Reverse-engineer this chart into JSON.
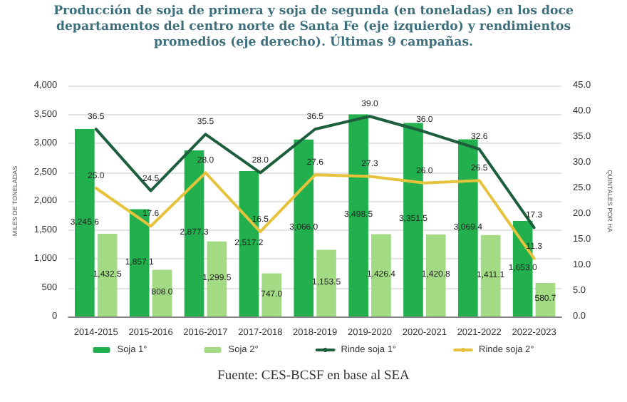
{
  "chart_data": {
    "type": "bar",
    "title": "Producción de soja de primera y soja de segunda (en toneladas) en los doce departamentos del centro norte de Santa Fe (eje izquierdo) y rendimientos promedios (eje derecho). Últimas 9 campañas.",
    "ylabel": "MILES DE TONELADAS",
    "y2label": "QUINTALES POR HA",
    "categories": [
      "2014-2015",
      "2015-2016",
      "2016-2017",
      "2017-2018",
      "2018-2019",
      "2019-2020",
      "2020-2021",
      "2021-2022",
      "2022-2023"
    ],
    "series": [
      {
        "name": "Soja 1°",
        "color": "#22b04f",
        "values": [
          3245.6,
          1857.1,
          2877.3,
          2517.2,
          3066.0,
          3498.5,
          3351.5,
          3069.4,
          1653.0
        ],
        "value_labels": [
          "3,245.6",
          "1,857.1",
          "2,877.3",
          "2,517.2",
          "3,066.0",
          "3,498.5",
          "3,351.5",
          "3,069.4",
          "1,653.0"
        ]
      },
      {
        "name": "Soja 2°",
        "color": "#a3db84",
        "values": [
          1432.5,
          808.0,
          1299.5,
          747.0,
          1153.5,
          1426.4,
          1420.8,
          1411.1,
          580.7
        ],
        "value_labels": [
          "1,432.5",
          "808.0",
          "1,299.5",
          "747.0",
          "1,153.5",
          "1,426.4",
          "1,420.8",
          "1,411.1",
          "580.7"
        ]
      },
      {
        "name": "Rinde soja 1°",
        "type": "line",
        "axis": "y2",
        "color": "#1d5e3c",
        "values": [
          36.5,
          24.5,
          35.5,
          28.0,
          36.5,
          39.0,
          36.0,
          32.6,
          17.3
        ],
        "value_labels": [
          "36.5",
          "24.5",
          "35.5",
          "28.0",
          "36.5",
          "39.0",
          "36.0",
          "32.6",
          "17.3"
        ]
      },
      {
        "name": "Rinde soja 2°",
        "type": "line",
        "axis": "y2",
        "color": "#e6c33c",
        "values": [
          25.0,
          17.6,
          28.0,
          16.5,
          27.6,
          27.3,
          26.0,
          26.5,
          11.3
        ],
        "value_labels": [
          "25.0",
          "17.6",
          "28.0",
          "16.5",
          "27.6",
          "27.3",
          "26.0",
          "26.5",
          "11.3"
        ]
      }
    ],
    "ylim": [
      0,
      4000
    ],
    "yticks": [
      {
        "value": 0,
        "label": "0"
      },
      {
        "value": 500,
        "label": "500"
      },
      {
        "value": 1000,
        "label": "1,000"
      },
      {
        "value": 1500,
        "label": "1,500"
      },
      {
        "value": 2000,
        "label": "2,000"
      },
      {
        "value": 2500,
        "label": "2,500"
      },
      {
        "value": 3000,
        "label": "3,000"
      },
      {
        "value": 3500,
        "label": "3,500"
      },
      {
        "value": 4000,
        "label": "4,000"
      }
    ],
    "y2lim": [
      0,
      45
    ],
    "y2ticks": [
      {
        "value": 0,
        "label": "0.0"
      },
      {
        "value": 5,
        "label": "5.0"
      },
      {
        "value": 10,
        "label": "10.0"
      },
      {
        "value": 15,
        "label": "15.0"
      },
      {
        "value": 20,
        "label": "20.0"
      },
      {
        "value": 25,
        "label": "25.0"
      },
      {
        "value": 30,
        "label": "30.0"
      },
      {
        "value": 35,
        "label": "35.0"
      },
      {
        "value": 40,
        "label": "40.0"
      },
      {
        "value": 45,
        "label": "45.0"
      }
    ],
    "grid": "y",
    "legend": "bottom",
    "marker": "none",
    "line_style": "solid",
    "annotations": [
      "Fuente: CES-BCSF en base al SEA"
    ]
  }
}
